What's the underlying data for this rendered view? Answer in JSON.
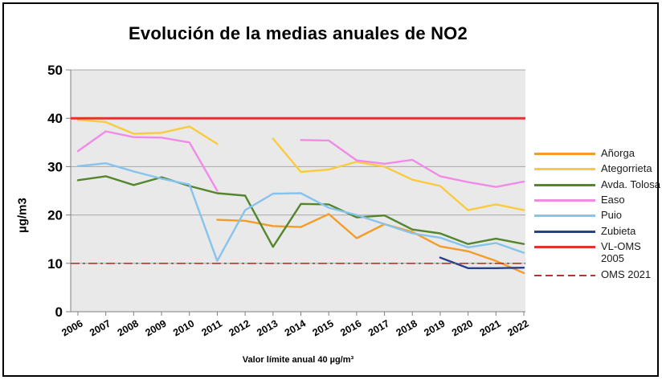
{
  "window": {
    "background": "#ffffff",
    "border_color": "#000000"
  },
  "chart_data": {
    "type": "line",
    "title": "Evolución de la medias anuales de NO2",
    "ylabel": "µg/m3",
    "xlabel": "",
    "caption": "Valor límite anual 40 µg/m³",
    "categories": [
      2006,
      2007,
      2008,
      2009,
      2010,
      2011,
      2012,
      2013,
      2014,
      2015,
      2016,
      2017,
      2018,
      2019,
      2020,
      2021,
      2022
    ],
    "ylim": [
      0,
      50
    ],
    "yticks": [
      0,
      10,
      20,
      30,
      40,
      50
    ],
    "grid": true,
    "legend_position": "right",
    "plot_bg": "#E9E9E9",
    "gridline_color": "#A8A8A8",
    "axis_color": "#7F7F7F",
    "series": [
      {
        "name": "Añorga",
        "color": "#F59C28",
        "style": "solid",
        "width": 2.4,
        "values": [
          null,
          null,
          null,
          null,
          null,
          19,
          18.8,
          17.7,
          17.5,
          20.2,
          15.2,
          18.1,
          16.5,
          13.5,
          12.5,
          10.5,
          8
        ]
      },
      {
        "name": "Ategorrieta",
        "color": "#FACB3E",
        "style": "solid",
        "width": 2.4,
        "values": [
          39.7,
          39.2,
          36.8,
          37,
          38.3,
          34.7,
          null,
          35.8,
          28.9,
          29.4,
          31,
          30,
          27.3,
          26,
          21,
          22.2,
          21
        ]
      },
      {
        "name": "Avda. Tolosa",
        "color": "#53862D",
        "style": "solid",
        "width": 2.4,
        "values": [
          27.2,
          28,
          26.2,
          27.8,
          26,
          24.5,
          24,
          13.4,
          22.3,
          22.2,
          19.5,
          19.9,
          17,
          16.2,
          14,
          15.1,
          14
        ]
      },
      {
        "name": "Easo",
        "color": "#F18BE9",
        "style": "solid",
        "width": 2.4,
        "values": [
          33.2,
          37.3,
          36.1,
          36,
          35,
          25,
          null,
          null,
          35.5,
          35.4,
          31.3,
          30.6,
          31.4,
          28,
          26.8,
          25.8,
          26.9
        ]
      },
      {
        "name": "Puio",
        "color": "#86C3ED",
        "style": "solid",
        "width": 2.4,
        "values": [
          30.1,
          30.7,
          29,
          27.5,
          26.3,
          10.5,
          21,
          24.4,
          24.5,
          21.5,
          20,
          18.1,
          16.2,
          15.3,
          13.3,
          14.2,
          12.2
        ]
      },
      {
        "name": "Zubieta",
        "color": "#28418C",
        "style": "solid",
        "width": 2.4,
        "values": [
          null,
          null,
          null,
          null,
          null,
          null,
          null,
          null,
          null,
          null,
          null,
          null,
          null,
          11.2,
          9,
          9,
          9.1
        ]
      },
      {
        "name": "VL-OMS 2005",
        "color": "#E2342E",
        "style": "solid",
        "width": 3,
        "constant": 40
      },
      {
        "name": "OMS 2021",
        "color": "#C2322B",
        "style": "dashed",
        "width": 1.6,
        "constant": 10
      }
    ]
  }
}
